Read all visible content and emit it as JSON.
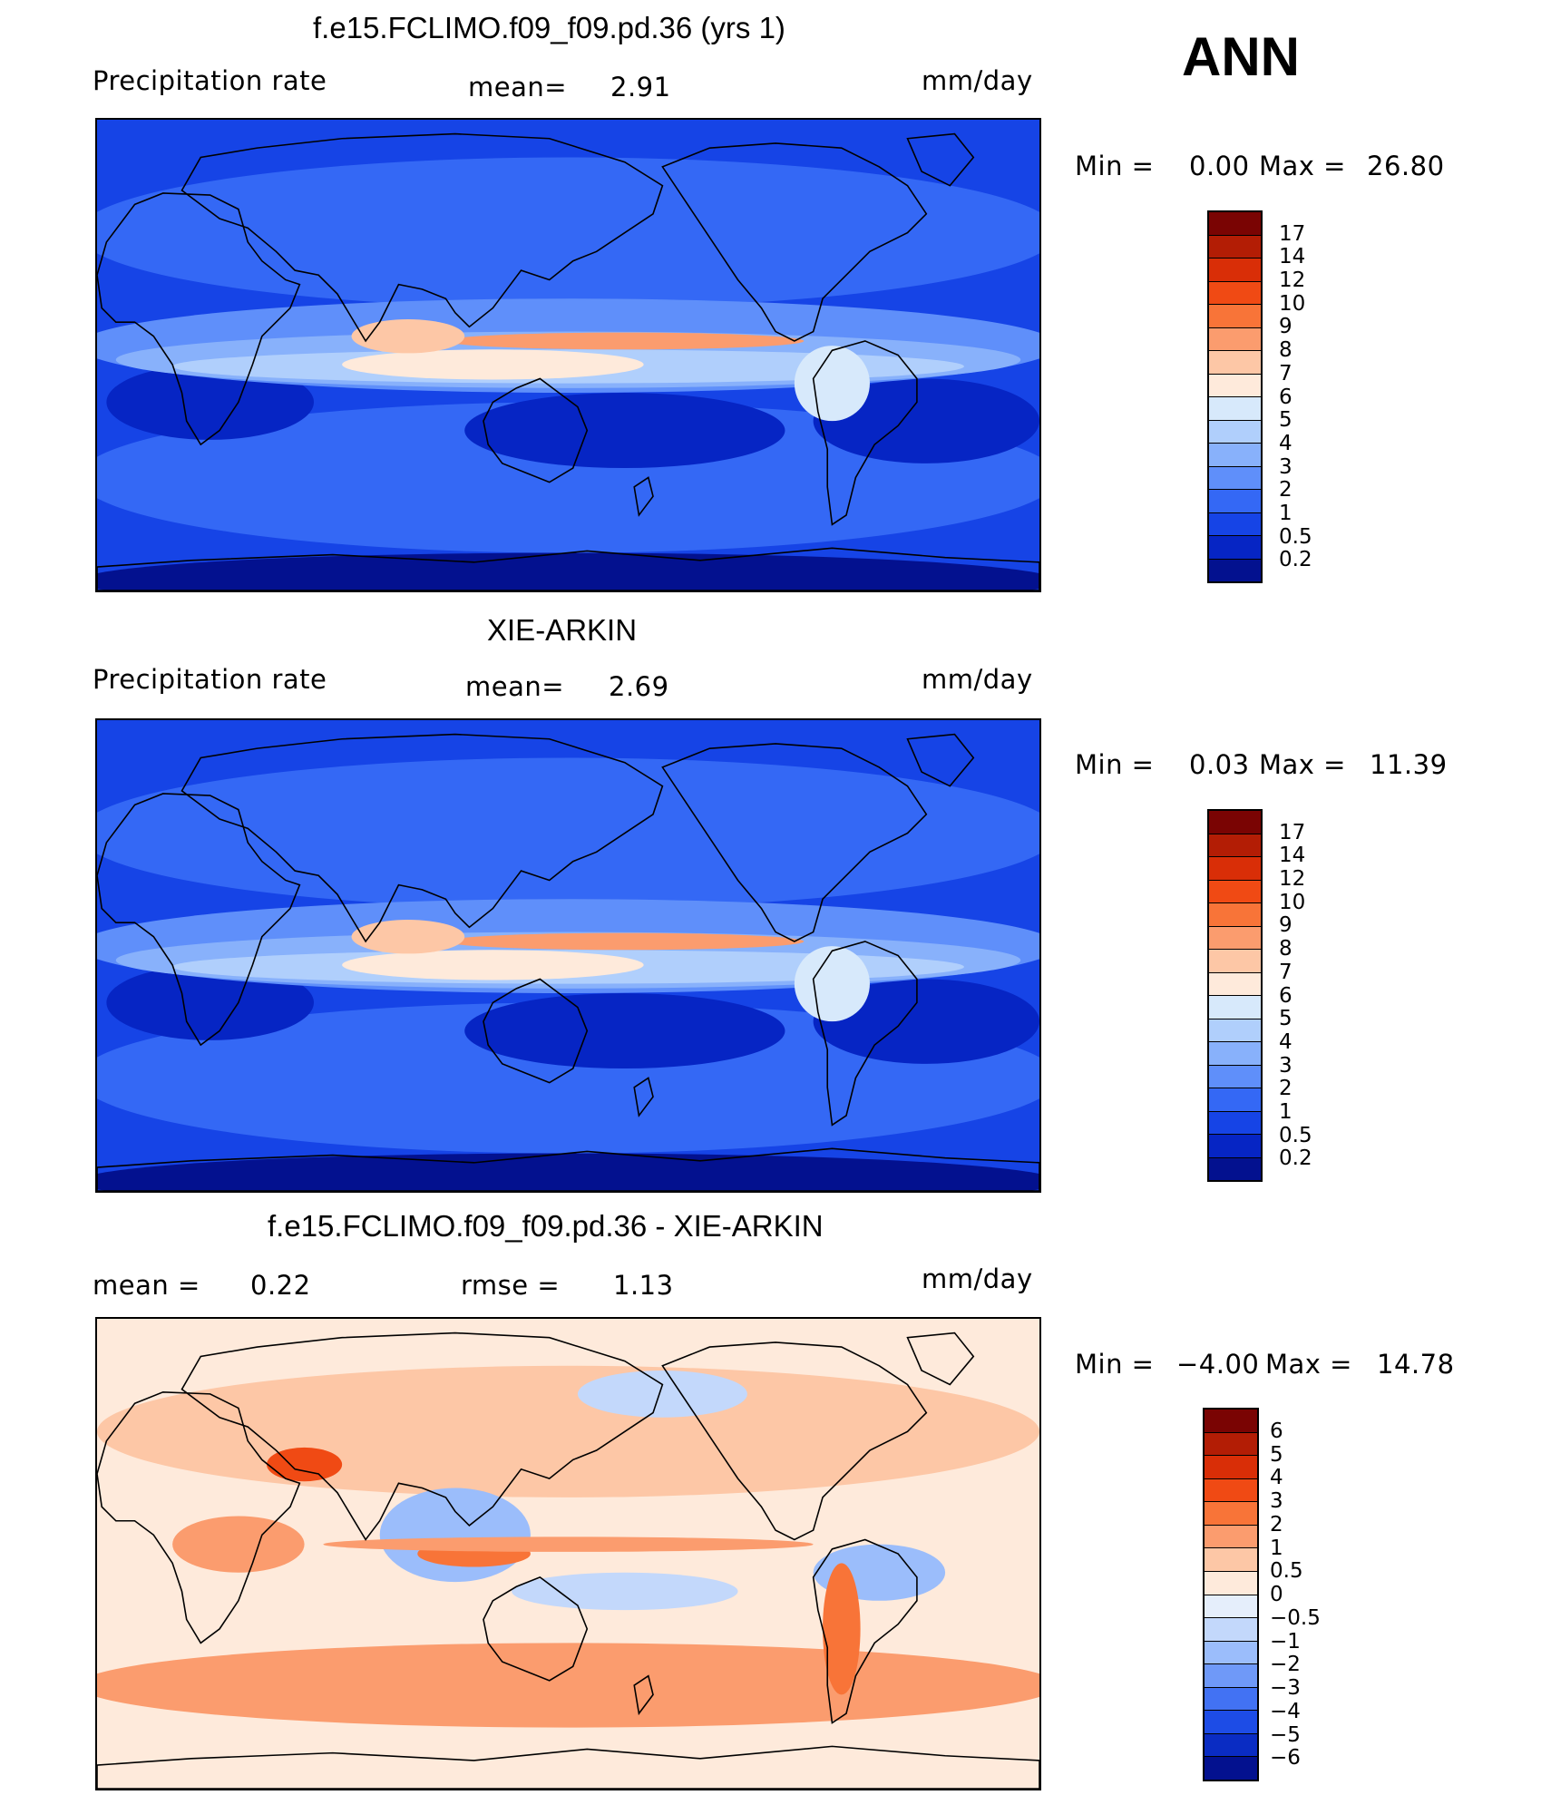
{
  "season": "ANN",
  "panels": [
    {
      "id": "model",
      "title": "f.e15.FCLIMO.f09_f09.pd.36 (yrs 1)",
      "left_label": "Precipitation  rate",
      "mid_label": "mean=",
      "mid_value": "2.91",
      "units": "mm/day",
      "min_label": "Min  =",
      "min_value": "0.00",
      "max_label": "Max  =",
      "max_value": "26.80",
      "colorbar_ticks": [
        "17",
        "14",
        "12",
        "10",
        "9",
        "8",
        "7",
        "6",
        "5",
        "4",
        "3",
        "2",
        "1",
        "0.5",
        "0.2"
      ],
      "colorbar_colors": [
        "#7a0403",
        "#b31d05",
        "#d92e07",
        "#f04a14",
        "#f87438",
        "#fb9c6e",
        "#fdc7a6",
        "#feeadb",
        "#d7e9fb",
        "#b0cffc",
        "#88b1fb",
        "#5f8ffa",
        "#3468f5",
        "#1644e6",
        "#0625c4",
        "#03118f"
      ],
      "map_type": "precip"
    },
    {
      "id": "obs",
      "title": "XIE-ARKIN",
      "left_label": "Precipitation  rate",
      "mid_label": "mean=",
      "mid_value": "2.69",
      "units": "mm/day",
      "min_label": "Min  =",
      "min_value": "0.03",
      "max_label": "Max  =",
      "max_value": "11.39",
      "colorbar_ticks": [
        "17",
        "14",
        "12",
        "10",
        "9",
        "8",
        "7",
        "6",
        "5",
        "4",
        "3",
        "2",
        "1",
        "0.5",
        "0.2"
      ],
      "colorbar_colors": [
        "#7a0403",
        "#b31d05",
        "#d92e07",
        "#f04a14",
        "#f87438",
        "#fb9c6e",
        "#fdc7a6",
        "#feeadb",
        "#d7e9fb",
        "#b0cffc",
        "#88b1fb",
        "#5f8ffa",
        "#3468f5",
        "#1644e6",
        "#0625c4",
        "#03118f"
      ],
      "map_type": "precip"
    },
    {
      "id": "diff",
      "title": "f.e15.FCLIMO.f09_f09.pd.36 - XIE-ARKIN",
      "left_label": "mean  =",
      "left_value": "0.22",
      "mid_label": "rmse  =",
      "mid_value": "1.13",
      "units": "mm/day",
      "min_label": "Min  =",
      "min_value": "−4.00",
      "max_label": "Max  =",
      "max_value": "14.78",
      "colorbar_ticks": [
        "6",
        "5",
        "4",
        "3",
        "2",
        "1",
        "0.5",
        "0",
        "−0.5",
        "−1",
        "−2",
        "−3",
        "−4",
        "−5",
        "−6"
      ],
      "colorbar_colors": [
        "#7a0403",
        "#b31d05",
        "#d92e07",
        "#f04a14",
        "#f87438",
        "#fb9c6e",
        "#fdc7a6",
        "#feeadb",
        "#e5eefb",
        "#c3d8fb",
        "#9bbdfb",
        "#6f99f8",
        "#4272f3",
        "#1d4ce6",
        "#0a2cc3",
        "#03118f"
      ],
      "map_type": "diff"
    }
  ]
}
